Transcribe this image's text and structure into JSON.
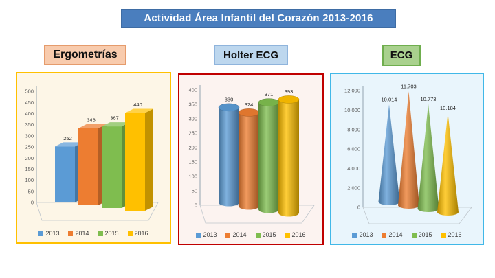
{
  "slide": {
    "background": "#FFFFFF"
  },
  "title": {
    "text": "Actividad Área Infantil del Corazón 2013-2016",
    "bg": "#4A7EBE",
    "color": "#FFFFFF"
  },
  "chart_data": [
    {
      "type": "bar",
      "shape": "box-3d",
      "title": "Ergometrías",
      "categories": [
        "2013",
        "2014",
        "2015",
        "2016"
      ],
      "values": [
        252,
        346,
        367,
        440
      ],
      "value_labels": [
        "252",
        "346",
        "367",
        "440"
      ],
      "colors": [
        "#5B9BD5",
        "#ED7D31",
        "#7FBD4F",
        "#FFC000"
      ],
      "ylim": [
        0,
        500
      ],
      "ytick_values": [
        0,
        50,
        100,
        150,
        200,
        250,
        300,
        350,
        400,
        450,
        500
      ],
      "ytick_labels": [
        "0",
        "50",
        "100",
        "150",
        "200",
        "250",
        "300",
        "350",
        "400",
        "450",
        "500"
      ],
      "grid": false,
      "legend_position": "bottom",
      "panel": {
        "bg": "#FDF6E7",
        "border": "#FFC000"
      },
      "header": {
        "bg": "#F8CBAD",
        "border": "#E59B6C"
      }
    },
    {
      "type": "bar",
      "shape": "cylinder-3d",
      "title": "Holter ECG",
      "categories": [
        "2013",
        "2014",
        "2015",
        "2016"
      ],
      "values": [
        330,
        324,
        371,
        393
      ],
      "value_labels": [
        "330",
        "324",
        "371",
        "393"
      ],
      "colors": [
        "#5B9BD5",
        "#ED7D31",
        "#7FBD4F",
        "#FFC000"
      ],
      "ylim": [
        0,
        400
      ],
      "ytick_values": [
        0,
        50,
        100,
        150,
        200,
        250,
        300,
        350,
        400
      ],
      "ytick_labels": [
        "0",
        "50",
        "100",
        "150",
        "200",
        "250",
        "300",
        "350",
        "400"
      ],
      "grid": false,
      "legend_position": "bottom",
      "panel": {
        "bg": "#FCF3F0",
        "border": "#C00000"
      },
      "header": {
        "bg": "#BDD7EE",
        "border": "#8FB4DC"
      }
    },
    {
      "type": "bar",
      "shape": "cone-3d",
      "title": "ECG",
      "categories": [
        "2013",
        "2014",
        "2015",
        "2016"
      ],
      "values": [
        10014,
        11703,
        10773,
        10184
      ],
      "value_labels": [
        "10.014",
        "11.703",
        "10.773",
        "10.184"
      ],
      "colors": [
        "#5B9BD5",
        "#ED7D31",
        "#7FBD4F",
        "#FFC000"
      ],
      "ylim": [
        0,
        12000
      ],
      "ytick_values": [
        0,
        2000,
        4000,
        6000,
        8000,
        10000,
        12000
      ],
      "ytick_labels": [
        "0",
        "2.000",
        "4.000",
        "6.000",
        "8.000",
        "10.000",
        "12.000"
      ],
      "grid": false,
      "legend_position": "bottom",
      "panel": {
        "bg": "#E9F5FC",
        "border": "#41B8E8"
      },
      "header": {
        "bg": "#A9D18E",
        "border": "#6FAE4E"
      }
    }
  ]
}
